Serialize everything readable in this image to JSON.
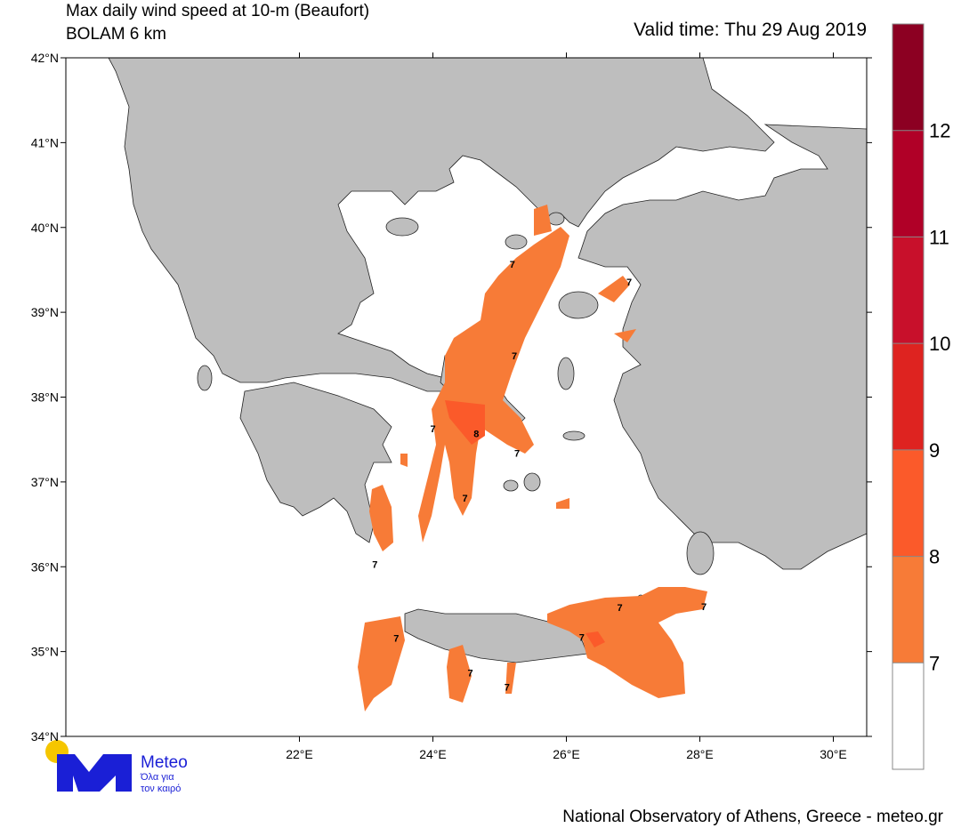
{
  "title": "Max daily wind speed at 10-m (Beaufort)",
  "subtitle": "BOLAM 6 km",
  "valid_time": "Valid time: Thu 29 Aug 2019",
  "map": {
    "lon_range": [
      18.5,
      30.5
    ],
    "lat_range": [
      34,
      42
    ],
    "lat_ticks": [
      {
        "value": 34,
        "label": "34°N"
      },
      {
        "value": 35,
        "label": "35°N"
      },
      {
        "value": 36,
        "label": "36°N"
      },
      {
        "value": 37,
        "label": "37°N"
      },
      {
        "value": 38,
        "label": "38°N"
      },
      {
        "value": 39,
        "label": "39°N"
      },
      {
        "value": 40,
        "label": "40°N"
      },
      {
        "value": 41,
        "label": "41°N"
      },
      {
        "value": 42,
        "label": "42°N"
      }
    ],
    "lon_ticks": [
      {
        "value": 22,
        "label": "22°E"
      },
      {
        "value": 24,
        "label": "24°E"
      },
      {
        "value": 26,
        "label": "26°E"
      },
      {
        "value": 28,
        "label": "28°E"
      },
      {
        "value": 30,
        "label": "30°E"
      }
    ]
  },
  "colorbar": {
    "levels": [
      7,
      8,
      9,
      10,
      11,
      12
    ],
    "colors": [
      "#ffffff",
      "#f77b37",
      "#fb5a2a",
      "#de2320",
      "#c8102b",
      "#b00027",
      "#8c0022"
    ]
  },
  "contour_labels": [
    {
      "value": 7,
      "lon": 25.19,
      "lat": 39.57
    },
    {
      "value": 7,
      "lon": 26.94,
      "lat": 39.36
    },
    {
      "value": 7,
      "lon": 25.22,
      "lat": 38.49
    },
    {
      "value": 7,
      "lon": 24.0,
      "lat": 37.63
    },
    {
      "value": 8,
      "lon": 24.65,
      "lat": 37.57
    },
    {
      "value": 7,
      "lon": 25.26,
      "lat": 37.34
    },
    {
      "value": 7,
      "lon": 24.48,
      "lat": 36.81
    },
    {
      "value": 7,
      "lon": 23.13,
      "lat": 36.03
    },
    {
      "value": 7,
      "lon": 26.8,
      "lat": 35.52
    },
    {
      "value": 7,
      "lon": 28.06,
      "lat": 35.53
    },
    {
      "value": 7,
      "lon": 23.45,
      "lat": 35.16
    },
    {
      "value": 7,
      "lon": 26.23,
      "lat": 35.17
    },
    {
      "value": 7,
      "lon": 24.56,
      "lat": 34.75
    },
    {
      "value": 7,
      "lon": 25.11,
      "lat": 34.58
    }
  ],
  "logo": {
    "name": "Meteo",
    "tagline_1": "Όλα για",
    "tagline_2": "τον καιρό"
  },
  "footer": "National Observatory of Athens, Greece - meteo.gr"
}
